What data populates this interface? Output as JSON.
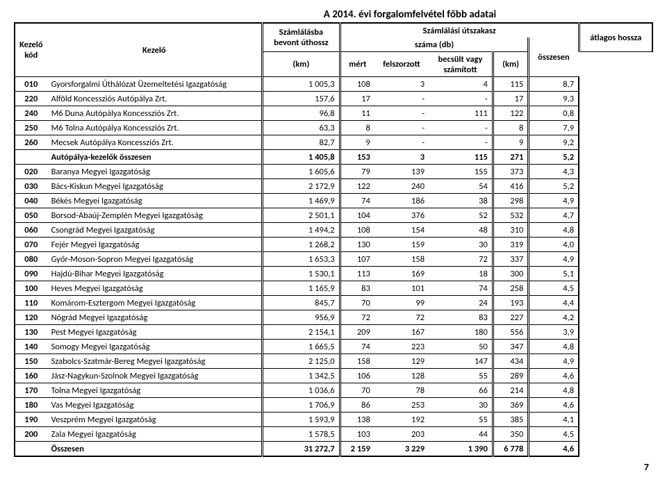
{
  "title": "A 2014. évi forgalomfelvétel főbb adatai",
  "header": {
    "kezelo_kod": "Kezelő\nkód",
    "kezelo": "Kezelő",
    "szamlalasba": "Számlálásba\nbevont úthossz",
    "szamlalasi": "Számlálási útszakasz",
    "szama": "száma (db)",
    "atlagos": "átlagos hossza",
    "km1": "(km)",
    "mert": "mért",
    "felszorzott": "felszorzott",
    "becsult": "becsült vagy\nszámított",
    "osszesen_h": "összesen",
    "km2": "(km)"
  },
  "rows": [
    {
      "kod": "010",
      "name": "Gyorsforgalmi Úthálózat Üzemeltetési Igazgatóság",
      "c1": "1 005,3",
      "c2": "108",
      "c3": "3",
      "c4": "4",
      "c5": "115",
      "c6": "8,7"
    },
    {
      "kod": "220",
      "name": "Alföld Koncessziós Autópálya Zrt.",
      "c1": "157,6",
      "c2": "17",
      "c3": "-",
      "c4": "-",
      "c5": "17",
      "c6": "9,3"
    },
    {
      "kod": "240",
      "name": "M6 Duna Autópálya Koncessziós Zrt.",
      "c1": "96,8",
      "c2": "11",
      "c3": "-",
      "c4": "111",
      "c5": "122",
      "c6": "0,8"
    },
    {
      "kod": "250",
      "name": "M6 Tolna Autópálya Koncessziós Zrt.",
      "c1": "63,3",
      "c2": "8",
      "c3": "-",
      "c4": "-",
      "c5": "8",
      "c6": "7,9"
    },
    {
      "kod": "260",
      "name": "Mecsek Autópálya Koncessziós Zrt.",
      "c1": "82,7",
      "c2": "9",
      "c3": "-",
      "c4": "-",
      "c5": "9",
      "c6": "9,2"
    },
    {
      "kod": "",
      "name": "Autópálya-kezelők összesen",
      "c1": "1 405,8",
      "c2": "153",
      "c3": "3",
      "c4": "115",
      "c5": "271",
      "c6": "5,2",
      "bold": true
    },
    {
      "kod": "020",
      "name": "Baranya Megyei Igazgatóság",
      "c1": "1 605,6",
      "c2": "79",
      "c3": "139",
      "c4": "155",
      "c5": "373",
      "c6": "4,3"
    },
    {
      "kod": "030",
      "name": "Bács-Kiskun Megyei Igazgatóság",
      "c1": "2 172,9",
      "c2": "122",
      "c3": "240",
      "c4": "54",
      "c5": "416",
      "c6": "5,2"
    },
    {
      "kod": "040",
      "name": "Békés Megyei Igazgatóság",
      "c1": "1 469,9",
      "c2": "74",
      "c3": "186",
      "c4": "38",
      "c5": "298",
      "c6": "4,9"
    },
    {
      "kod": "050",
      "name": "Borsod-Abaúj-Zemplén Megyei Igazgatóság",
      "c1": "2 501,1",
      "c2": "104",
      "c3": "376",
      "c4": "52",
      "c5": "532",
      "c6": "4,7"
    },
    {
      "kod": "060",
      "name": "Csongrád Megyei Igazgatóság",
      "c1": "1 494,2",
      "c2": "108",
      "c3": "154",
      "c4": "48",
      "c5": "310",
      "c6": "4,8"
    },
    {
      "kod": "070",
      "name": "Fejér Megyei Igazgatóság",
      "c1": "1 268,2",
      "c2": "130",
      "c3": "159",
      "c4": "30",
      "c5": "319",
      "c6": "4,0"
    },
    {
      "kod": "080",
      "name": "Győr-Moson-Sopron Megyei Igazgatóság",
      "c1": "1 653,3",
      "c2": "107",
      "c3": "158",
      "c4": "72",
      "c5": "337",
      "c6": "4,9"
    },
    {
      "kod": "090",
      "name": "Hajdú-Bihar Megyei Igazgatóság",
      "c1": "1 530,1",
      "c2": "113",
      "c3": "169",
      "c4": "18",
      "c5": "300",
      "c6": "5,1"
    },
    {
      "kod": "100",
      "name": "Heves Megyei Igazgatóság",
      "c1": "1 165,9",
      "c2": "83",
      "c3": "101",
      "c4": "74",
      "c5": "258",
      "c6": "4,5"
    },
    {
      "kod": "110",
      "name": "Komárom-Esztergom Megyei Igazgatóság",
      "c1": "845,7",
      "c2": "70",
      "c3": "99",
      "c4": "24",
      "c5": "193",
      "c6": "4,4"
    },
    {
      "kod": "120",
      "name": "Nógrád Megyei Igazgatóság",
      "c1": "956,9",
      "c2": "72",
      "c3": "72",
      "c4": "83",
      "c5": "227",
      "c6": "4,2"
    },
    {
      "kod": "130",
      "name": "Pest Megyei Igazgatóság",
      "c1": "2 154,1",
      "c2": "209",
      "c3": "167",
      "c4": "180",
      "c5": "556",
      "c6": "3,9"
    },
    {
      "kod": "140",
      "name": "Somogy Megyei Igazgatóság",
      "c1": "1 665,5",
      "c2": "74",
      "c3": "223",
      "c4": "50",
      "c5": "347",
      "c6": "4,8"
    },
    {
      "kod": "150",
      "name": "Szabolcs-Szatmár-Bereg Megyei Igazgatóság",
      "c1": "2 125,0",
      "c2": "158",
      "c3": "129",
      "c4": "147",
      "c5": "434",
      "c6": "4,9"
    },
    {
      "kod": "160",
      "name": "Jász-Nagykun-Szolnok Megyei Igazgatóság",
      "c1": "1 342,5",
      "c2": "106",
      "c3": "128",
      "c4": "55",
      "c5": "289",
      "c6": "4,6"
    },
    {
      "kod": "170",
      "name": "Tolna Megyei Igazgatóság",
      "c1": "1 036,6",
      "c2": "70",
      "c3": "78",
      "c4": "66",
      "c5": "214",
      "c6": "4,8"
    },
    {
      "kod": "180",
      "name": "Vas Megyei Igazgatóság",
      "c1": "1 706,9",
      "c2": "86",
      "c3": "253",
      "c4": "30",
      "c5": "369",
      "c6": "4,6"
    },
    {
      "kod": "190",
      "name": "Veszprém Megyei Igazgatóság",
      "c1": "1 593,9",
      "c2": "138",
      "c3": "192",
      "c4": "55",
      "c5": "385",
      "c6": "4,1"
    },
    {
      "kod": "200",
      "name": "Zala Megyei Igazgatóság",
      "c1": "1 578,5",
      "c2": "103",
      "c3": "203",
      "c4": "44",
      "c5": "350",
      "c6": "4,5"
    },
    {
      "kod": "",
      "name": "Összesen",
      "c1": "31 272,7",
      "c2": "2 159",
      "c3": "3 229",
      "c4": "1 390",
      "c5": "6 778",
      "c6": "4,6",
      "bold": true,
      "last": true
    }
  ],
  "page_number": "7"
}
